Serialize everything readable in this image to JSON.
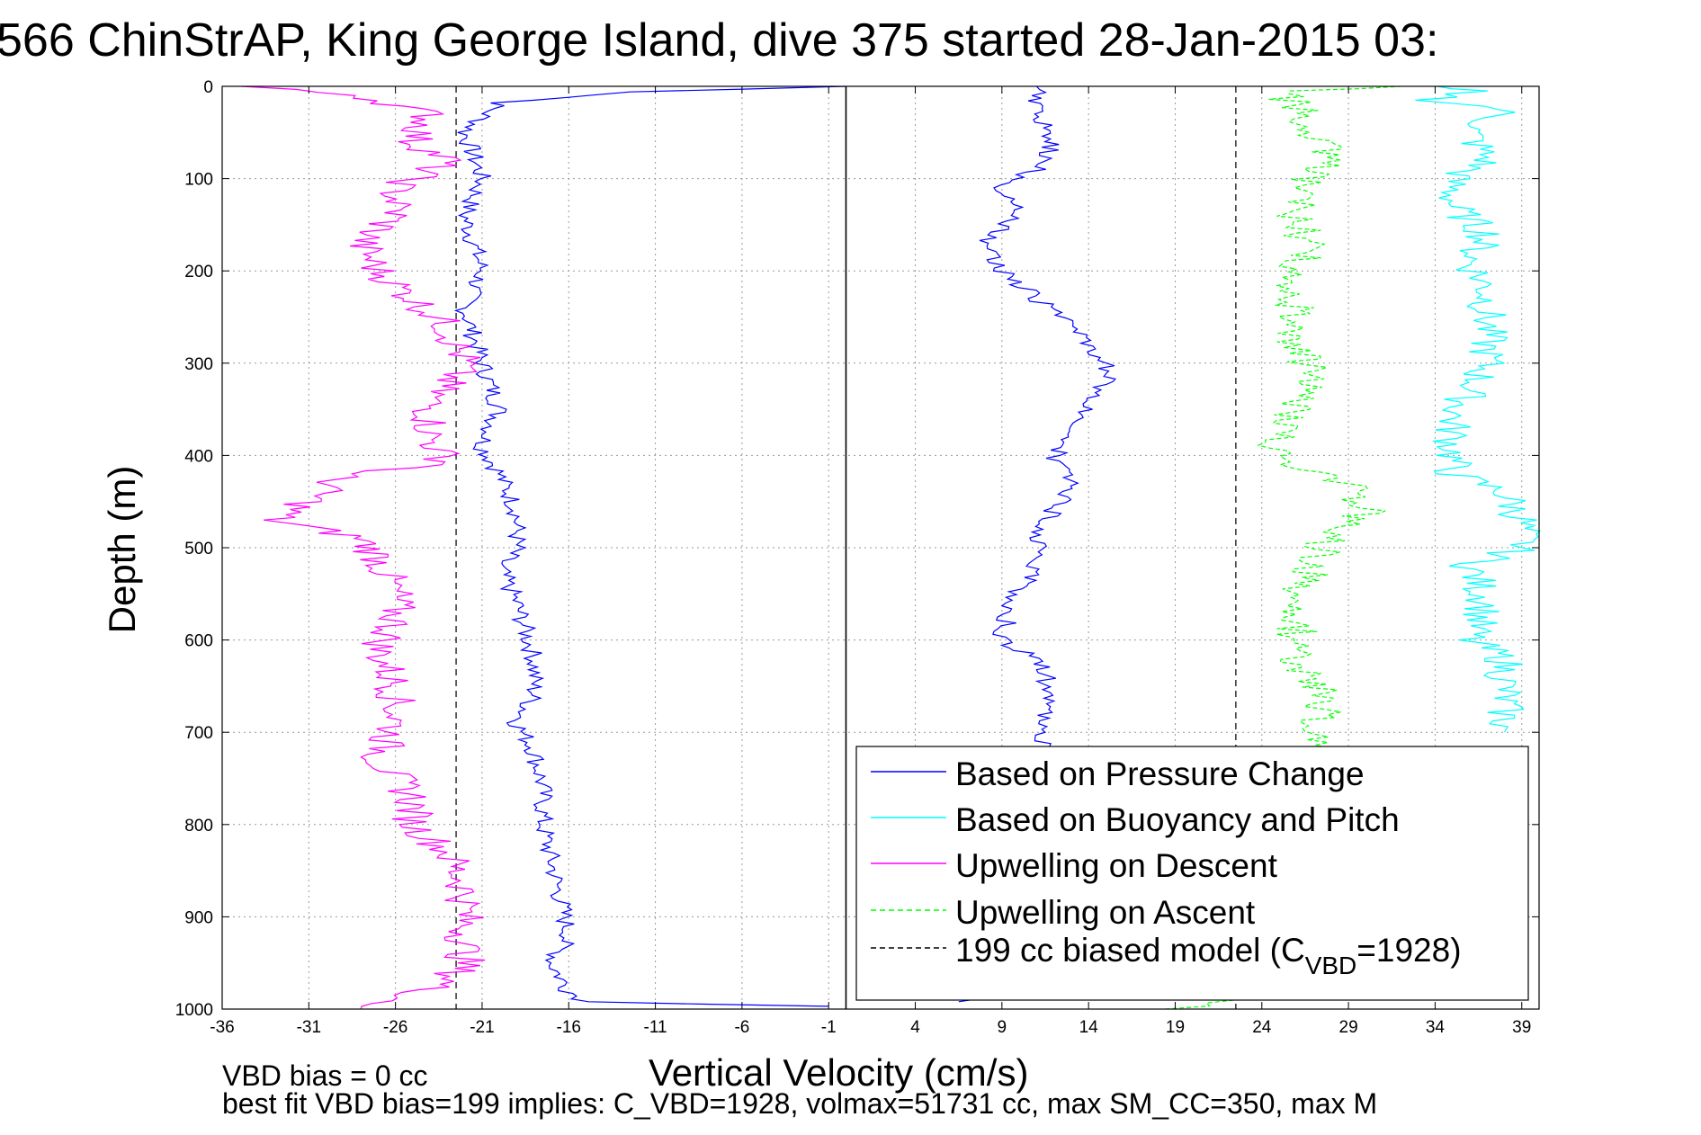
{
  "chart_data": {
    "type": "line",
    "title": "566 ChinStrAP, King George Island, dive 375 started 28-Jan-2015 03:",
    "xlabel": "Vertical Velocity (cm/s)",
    "ylabel": "Depth (m)",
    "xlim": [
      -36,
      40
    ],
    "ylim": [
      1000,
      0
    ],
    "y_reversed": true,
    "grid": true,
    "x_ticks": [
      -36,
      -31,
      -26,
      -21,
      -16,
      -11,
      -6,
      -1,
      4,
      9,
      14,
      19,
      24,
      29,
      34,
      39
    ],
    "y_ticks": [
      0,
      100,
      200,
      300,
      400,
      500,
      600,
      700,
      800,
      900,
      1000
    ],
    "legend_position": "bottom-right",
    "reference_lines": [
      {
        "x": 0,
        "style": "solid",
        "color": "#000000"
      },
      {
        "x": -22.5,
        "style": "dashed",
        "color": "#000000"
      },
      {
        "x": 22.5,
        "style": "dashed",
        "color": "#000000"
      }
    ],
    "legend": [
      {
        "label": "Based on Pressure Change",
        "color": "#0000ff",
        "style": "solid"
      },
      {
        "label": "Based on Buoyancy and Pitch",
        "color": "#00ffff",
        "style": "solid"
      },
      {
        "label": "Upwelling on Descent",
        "color": "#ff00ff",
        "style": "solid"
      },
      {
        "label": "Upwelling on Ascent",
        "color": "#00ff00",
        "style": "dashed"
      },
      {
        "label_main": "199 cc biased model (C",
        "label_sub": "VBD",
        "label_end": "=1928)",
        "color": "#000000",
        "style": "dashed"
      }
    ],
    "series": [
      {
        "id": "pressure-descent",
        "legend_index": 0,
        "color": "#0000ff",
        "style": "solid",
        "points": [
          [
            0,
            0
          ],
          [
            -12,
            6
          ],
          [
            -20,
            18
          ],
          [
            -22,
            50
          ],
          [
            -21,
            100
          ],
          [
            -22,
            140
          ],
          [
            -21,
            200
          ],
          [
            -22,
            240
          ],
          [
            -21,
            300
          ],
          [
            -20,
            350
          ],
          [
            -21,
            390
          ],
          [
            -20,
            420
          ],
          [
            -19,
            460
          ],
          [
            -19,
            500
          ],
          [
            -20,
            520
          ],
          [
            -19,
            560
          ],
          [
            -18,
            620
          ],
          [
            -18,
            660
          ],
          [
            -19,
            690
          ],
          [
            -18,
            720
          ],
          [
            -17.5,
            760
          ],
          [
            -17.5,
            800
          ],
          [
            -17,
            840
          ],
          [
            -16.5,
            880
          ],
          [
            -16,
            920
          ],
          [
            -17,
            950
          ],
          [
            -16,
            980
          ],
          [
            -15,
            992
          ],
          [
            -1,
            997
          ]
        ]
      },
      {
        "id": "pressure-ascent",
        "legend_index": null,
        "color": "#0000ff",
        "style": "solid",
        "points": [
          [
            7,
            992
          ],
          [
            9,
            984
          ],
          [
            10,
            960
          ],
          [
            11,
            930
          ],
          [
            12,
            900
          ],
          [
            11,
            860
          ],
          [
            12,
            820
          ],
          [
            11,
            780
          ],
          [
            12,
            740
          ],
          [
            11,
            700
          ],
          [
            12,
            660
          ],
          [
            11,
            620
          ],
          [
            9,
            600
          ],
          [
            9.5,
            560
          ],
          [
            11,
            520
          ],
          [
            11,
            480
          ],
          [
            12,
            460
          ],
          [
            13,
            430
          ],
          [
            12,
            400
          ],
          [
            13,
            380
          ],
          [
            14,
            350
          ],
          [
            15,
            320
          ],
          [
            15,
            300
          ],
          [
            13,
            260
          ],
          [
            11,
            230
          ],
          [
            9,
            200
          ],
          [
            8,
            170
          ],
          [
            10,
            140
          ],
          [
            9,
            110
          ],
          [
            11,
            90
          ],
          [
            12,
            60
          ],
          [
            11,
            30
          ],
          [
            11,
            10
          ],
          [
            11,
            0
          ]
        ]
      },
      {
        "id": "buoyancy-pitch",
        "legend_index": 1,
        "color": "#00ffff",
        "style": "solid",
        "points": [
          [
            33,
            0
          ],
          [
            36,
            5
          ],
          [
            34,
            15
          ],
          [
            38,
            25
          ],
          [
            36,
            50
          ],
          [
            37,
            80
          ],
          [
            35,
            100
          ],
          [
            35,
            130
          ],
          [
            37,
            160
          ],
          [
            36,
            190
          ],
          [
            37,
            220
          ],
          [
            37,
            260
          ],
          [
            37,
            300
          ],
          [
            36,
            330
          ],
          [
            35,
            360
          ],
          [
            35,
            400
          ],
          [
            35,
            420
          ],
          [
            38,
            440
          ],
          [
            39,
            470
          ],
          [
            39,
            500
          ],
          [
            36,
            520
          ],
          [
            37,
            560
          ],
          [
            36,
            600
          ],
          [
            38,
            620
          ],
          [
            38,
            660
          ],
          [
            38,
            700
          ]
        ]
      },
      {
        "id": "upwelling-descent",
        "legend_index": 2,
        "color": "#ff00ff",
        "style": "solid",
        "points": [
          [
            -35,
            0
          ],
          [
            -28,
            10
          ],
          [
            -24,
            30
          ],
          [
            -25,
            60
          ],
          [
            -23,
            80
          ],
          [
            -26,
            110
          ],
          [
            -26,
            140
          ],
          [
            -28,
            170
          ],
          [
            -27,
            200
          ],
          [
            -25,
            230
          ],
          [
            -23,
            260
          ],
          [
            -22,
            300
          ],
          [
            -24,
            340
          ],
          [
            -24,
            380
          ],
          [
            -23,
            410
          ],
          [
            -29,
            420
          ],
          [
            -31,
            450
          ],
          [
            -33,
            470
          ],
          [
            -28,
            490
          ],
          [
            -27,
            510
          ],
          [
            -26,
            550
          ],
          [
            -26,
            580
          ],
          [
            -27,
            610
          ],
          [
            -26,
            650
          ],
          [
            -26,
            690
          ],
          [
            -27,
            730
          ],
          [
            -25,
            770
          ],
          [
            -25,
            800
          ],
          [
            -23,
            830
          ],
          [
            -22,
            870
          ],
          [
            -22,
            910
          ],
          [
            -22,
            950
          ],
          [
            -23,
            970
          ],
          [
            -25,
            985
          ],
          [
            -28,
            1000
          ]
        ]
      },
      {
        "id": "upwelling-ascent",
        "legend_index": 3,
        "color": "#00ff00",
        "style": "dashed",
        "points": [
          [
            19,
            1000
          ],
          [
            22,
            990
          ],
          [
            24,
            960
          ],
          [
            26,
            920
          ],
          [
            27,
            880
          ],
          [
            26,
            840
          ],
          [
            28,
            800
          ],
          [
            27,
            760
          ],
          [
            28,
            720
          ],
          [
            27,
            690
          ],
          [
            28,
            660
          ],
          [
            26,
            630
          ],
          [
            26,
            600
          ],
          [
            26,
            560
          ],
          [
            27,
            520
          ],
          [
            28,
            480
          ],
          [
            30,
            460
          ],
          [
            29,
            430
          ],
          [
            25,
            410
          ],
          [
            25,
            380
          ],
          [
            26,
            350
          ],
          [
            27,
            320
          ],
          [
            26,
            280
          ],
          [
            26,
            240
          ],
          [
            25,
            210
          ],
          [
            27,
            180
          ],
          [
            26,
            150
          ],
          [
            26,
            110
          ],
          [
            28,
            80
          ],
          [
            27,
            50
          ],
          [
            26,
            20
          ],
          [
            25,
            5
          ],
          [
            32,
            0
          ]
        ]
      }
    ],
    "footer_lines": [
      "VBD bias = 0 cc",
      "best fit VBD bias=199 implies: C_VBD=1928, volmax=51731 cc, max SM_CC=350, max M"
    ]
  }
}
